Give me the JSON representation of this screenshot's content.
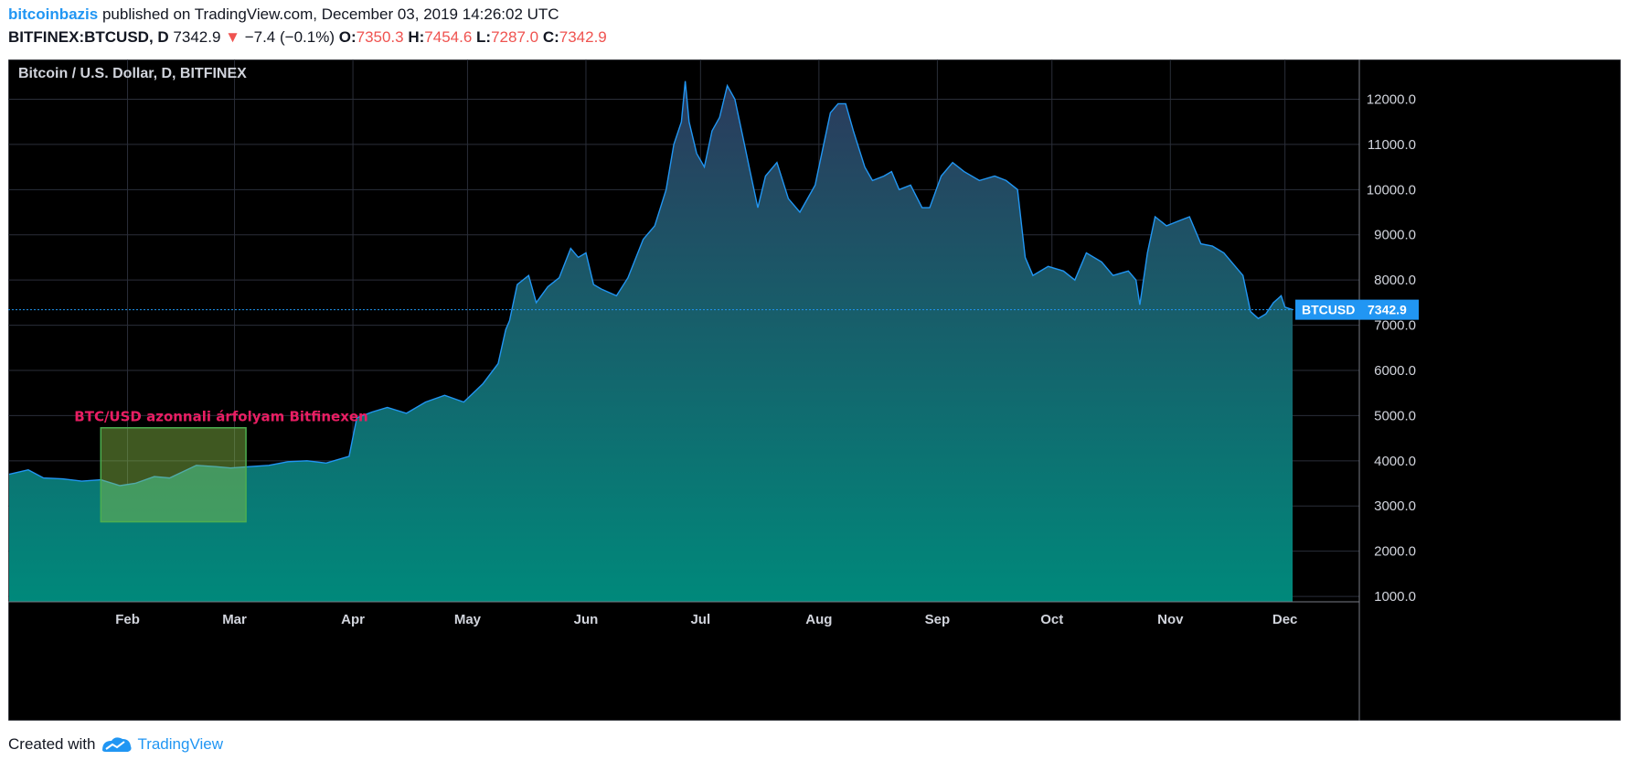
{
  "header": {
    "author": "bitcoinbazis",
    "published_text": "published on TradingView.com, December 03, 2019 14:26:02 UTC",
    "symbol": "BITFINEX:BTCUSD, D",
    "last": "7342.9",
    "change_arrow": "▼",
    "change": "−7.4 (−0.1%)",
    "o_label": "O:",
    "o_value": "7350.3",
    "h_label": "H:",
    "h_value": "7454.6",
    "l_label": "L:",
    "l_value": "7287.0",
    "c_label": "C:",
    "c_value": "7342.9"
  },
  "footer": {
    "created_with": "Created with",
    "brand": "TradingView"
  },
  "colors": {
    "background": "#000000",
    "line": "#2196f3",
    "area_top": "#2b3a5c",
    "area_bottom": "#00897b",
    "grid": "#2a2e39",
    "annotation_text": "#e91e63",
    "annotation_box_fill": "#8bc34a",
    "annotation_box_border": "#4caf50",
    "price_label_bg": "#2196f3"
  },
  "chart_data": {
    "type": "area",
    "title": "Bitcoin / U.S. Dollar, D, BITFINEX",
    "xlabel": "",
    "ylabel": "",
    "x_start": "2019-01-01",
    "x_end": "2019-12-03",
    "x_tick_labels": [
      "Feb",
      "Mar",
      "Apr",
      "May",
      "Jun",
      "Jul",
      "Aug",
      "Sep",
      "Oct",
      "Nov",
      "Dec"
    ],
    "x_tick_dates": [
      "2019-02-01",
      "2019-03-01",
      "2019-04-01",
      "2019-05-01",
      "2019-06-01",
      "2019-07-01",
      "2019-08-01",
      "2019-09-01",
      "2019-10-01",
      "2019-11-01",
      "2019-12-01"
    ],
    "y_ticks": [
      1000,
      2000,
      3000,
      4000,
      5000,
      6000,
      7000,
      8000,
      9000,
      10000,
      11000,
      12000
    ],
    "y_tick_labels": [
      "1000.0",
      "2000.0",
      "3000.0",
      "4000.0",
      "5000.0",
      "6000.0",
      "7000.0",
      "8000.0",
      "9000.0",
      "10000.0",
      "11000.0",
      "12000.0"
    ],
    "ylim": [
      880,
      12880
    ],
    "grid": true,
    "series": [
      {
        "dates": [
          "2019-01-01",
          "2019-01-06",
          "2019-01-10",
          "2019-01-15",
          "2019-01-20",
          "2019-01-25",
          "2019-01-30",
          "2019-02-03",
          "2019-02-08",
          "2019-02-12",
          "2019-02-16",
          "2019-02-19",
          "2019-02-24",
          "2019-02-28",
          "2019-03-05",
          "2019-03-10",
          "2019-03-15",
          "2019-03-20",
          "2019-03-25",
          "2019-03-31",
          "2019-04-02",
          "2019-04-06",
          "2019-04-10",
          "2019-04-15",
          "2019-04-20",
          "2019-04-25",
          "2019-04-30",
          "2019-05-05",
          "2019-05-09",
          "2019-05-11",
          "2019-05-12",
          "2019-05-14",
          "2019-05-17",
          "2019-05-19",
          "2019-05-22",
          "2019-05-25",
          "2019-05-28",
          "2019-05-30",
          "2019-06-01",
          "2019-06-03",
          "2019-06-05",
          "2019-06-09",
          "2019-06-12",
          "2019-06-16",
          "2019-06-19",
          "2019-06-22",
          "2019-06-24",
          "2019-06-26",
          "2019-06-27",
          "2019-06-28",
          "2019-06-30",
          "2019-07-02",
          "2019-07-04",
          "2019-07-06",
          "2019-07-08",
          "2019-07-10",
          "2019-07-12",
          "2019-07-14",
          "2019-07-16",
          "2019-07-18",
          "2019-07-21",
          "2019-07-24",
          "2019-07-27",
          "2019-07-31",
          "2019-08-02",
          "2019-08-04",
          "2019-08-06",
          "2019-08-08",
          "2019-08-10",
          "2019-08-13",
          "2019-08-15",
          "2019-08-18",
          "2019-08-20",
          "2019-08-22",
          "2019-08-25",
          "2019-08-28",
          "2019-08-30",
          "2019-09-02",
          "2019-09-05",
          "2019-09-08",
          "2019-09-12",
          "2019-09-16",
          "2019-09-19",
          "2019-09-22",
          "2019-09-24",
          "2019-09-26",
          "2019-09-30",
          "2019-10-04",
          "2019-10-07",
          "2019-10-10",
          "2019-10-14",
          "2019-10-17",
          "2019-10-21",
          "2019-10-23",
          "2019-10-24",
          "2019-10-26",
          "2019-10-28",
          "2019-10-31",
          "2019-11-03",
          "2019-11-06",
          "2019-11-09",
          "2019-11-12",
          "2019-11-15",
          "2019-11-18",
          "2019-11-20",
          "2019-11-22",
          "2019-11-24",
          "2019-11-26",
          "2019-11-28",
          "2019-11-30",
          "2019-12-01",
          "2019-12-03"
        ],
        "values": [
          3700,
          3800,
          3620,
          3600,
          3550,
          3580,
          3450,
          3500,
          3650,
          3620,
          3780,
          3900,
          3870,
          3840,
          3870,
          3900,
          3980,
          4000,
          3950,
          4100,
          4950,
          5080,
          5180,
          5050,
          5300,
          5450,
          5300,
          5700,
          6150,
          6900,
          7100,
          7900,
          8100,
          7500,
          7850,
          8050,
          8700,
          8500,
          8600,
          7900,
          7800,
          7650,
          8050,
          8900,
          9200,
          10000,
          11000,
          11500,
          12400,
          11500,
          10800,
          10500,
          11300,
          11600,
          12300,
          12000,
          11200,
          10400,
          9600,
          10300,
          10600,
          9800,
          9500,
          10100,
          10900,
          11700,
          11900,
          11900,
          11300,
          10500,
          10200,
          10300,
          10400,
          10000,
          10100,
          9600,
          9600,
          10300,
          10600,
          10400,
          10200,
          10300,
          10200,
          10000,
          8500,
          8100,
          8300,
          8200,
          8000,
          8600,
          8400,
          8100,
          8200,
          8000,
          7450,
          8600,
          9400,
          9200,
          9300,
          9400,
          8800,
          8750,
          8600,
          8300,
          8100,
          7300,
          7150,
          7250,
          7500,
          7650,
          7400,
          7342.9
        ]
      }
    ],
    "last_value": "7342.9",
    "last_label": "BTCUSD",
    "annotation": {
      "text": "BTC/USD azonnali árfolyam Bitfinexen",
      "date_from": "2019-01-25",
      "date_to": "2019-03-04",
      "price_from": 2650,
      "price_to": 4730
    }
  }
}
